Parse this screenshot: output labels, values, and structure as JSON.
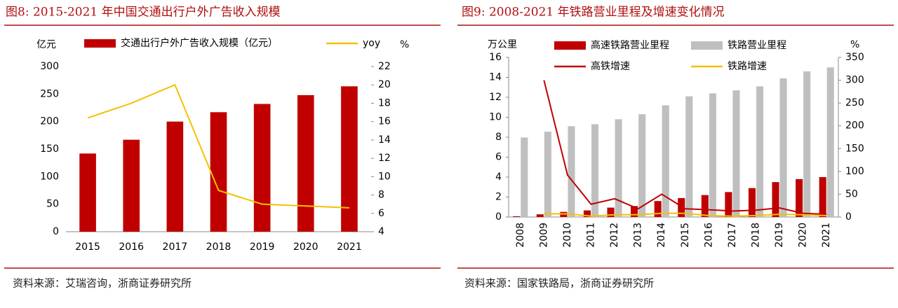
{
  "chart_data": [
    {
      "type": "combo",
      "title": "图8:  2015-2021 年中国交通出行户外广告收入规模",
      "source": "资料来源：艾瑞咨询，浙商证券研究所",
      "y_label": "亿元",
      "y2_label": "%",
      "categories": [
        "2015",
        "2016",
        "2017",
        "2018",
        "2019",
        "2020",
        "2021"
      ],
      "series": [
        {
          "name": "交通出行户外广告收入规模（亿元）",
          "kind": "bar",
          "color": "#c00000",
          "values": [
            142,
            167,
            200,
            217,
            232,
            248,
            264
          ]
        },
        {
          "name": "yoy",
          "kind": "line",
          "axis": "y2",
          "color": "#f5c000",
          "values": [
            16.4,
            18,
            20,
            8.5,
            7,
            6.8,
            6.6
          ]
        }
      ],
      "ylim": [
        0,
        300
      ],
      "yticks": [
        0,
        50,
        100,
        150,
        200,
        250,
        300
      ],
      "y2lim": [
        4,
        22
      ],
      "y2ticks": [
        4,
        6,
        8,
        10,
        12,
        14,
        16,
        18,
        20,
        22
      ],
      "rotate_categories": false
    },
    {
      "type": "combo",
      "title": "图9:  2008-2021 年铁路营业里程及增速变化情况",
      "source": "资料来源：国家铁路局，浙商证券研究所",
      "y_label": "万公里",
      "y2_label": "%",
      "categories": [
        "2008",
        "2009",
        "2010",
        "2011",
        "2012",
        "2013",
        "2014",
        "2015",
        "2016",
        "2017",
        "2018",
        "2019",
        "2020",
        "2021"
      ],
      "series": [
        {
          "name": "高速铁路营业里程",
          "kind": "bar",
          "color": "#c00000",
          "values": [
            0.07,
            0.27,
            0.51,
            0.66,
            0.94,
            1.1,
            1.6,
            1.9,
            2.2,
            2.5,
            2.9,
            3.5,
            3.8,
            4.0
          ]
        },
        {
          "name": "铁路营业里程",
          "kind": "bar",
          "color": "#bfbfbf",
          "values": [
            7.97,
            8.55,
            9.1,
            9.3,
            9.8,
            10.3,
            11.2,
            12.1,
            12.4,
            12.7,
            13.1,
            13.9,
            14.6,
            15.0
          ]
        },
        {
          "name": "高铁增速",
          "kind": "line",
          "axis": "y2",
          "color": "#c00000",
          "values": [
            null,
            300,
            92,
            28,
            40,
            18,
            50,
            18,
            16,
            13,
            15,
            20,
            8,
            6
          ]
        },
        {
          "name": "铁路增速",
          "kind": "line",
          "axis": "y2",
          "color": "#f5c000",
          "values": [
            null,
            7,
            7,
            2,
            5,
            5,
            8,
            8,
            3,
            2,
            3,
            6,
            5,
            3
          ]
        }
      ],
      "ylim": [
        0,
        16
      ],
      "yticks": [
        0,
        2,
        4,
        6,
        8,
        10,
        12,
        14,
        16
      ],
      "y2lim": [
        0,
        350
      ],
      "y2ticks": [
        0,
        50,
        100,
        150,
        200,
        250,
        300,
        350
      ],
      "rotate_categories": true
    }
  ]
}
